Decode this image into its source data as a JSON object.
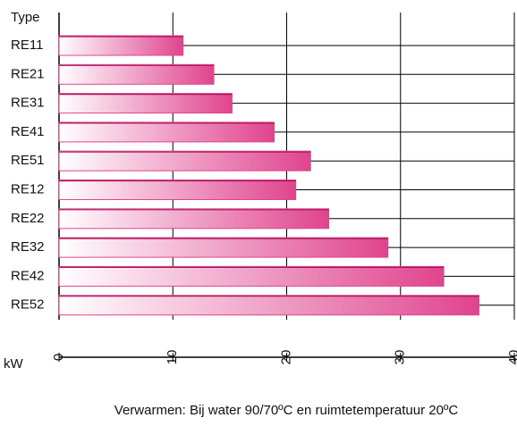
{
  "chart_data": {
    "type": "bar",
    "orientation": "horizontal",
    "category_label": "Type",
    "value_label": "kW",
    "note": "Verwarmen: Bij water 90/70ºC en ruimtetemperatuur 20ºC",
    "categories": [
      "RE11",
      "RE21",
      "RE31",
      "RE41",
      "RE51",
      "RE12",
      "RE22",
      "RE32",
      "RE42",
      "RE52"
    ],
    "values": [
      10.9,
      13.6,
      15.2,
      18.9,
      22.1,
      20.8,
      23.7,
      28.9,
      33.8,
      36.9
    ],
    "color": "#e0448e",
    "xlim": [
      0,
      40
    ],
    "xticks": [
      0,
      10,
      20,
      30,
      40
    ],
    "grid": true
  }
}
